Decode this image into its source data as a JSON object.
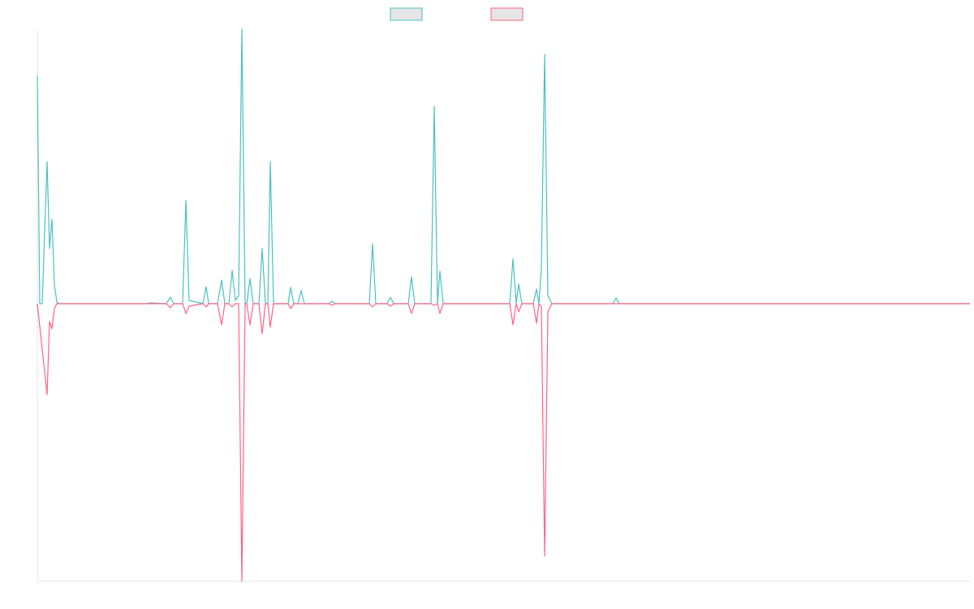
{
  "chart_data": {
    "type": "line",
    "xlim": [
      0,
      1149
    ],
    "ylim": [
      -342,
      338
    ],
    "grid": false,
    "legend": "top",
    "series": [
      {
        "color": "#4bc0c0",
        "x": [
          0,
          3,
          6,
          12,
          15,
          18,
          21,
          24,
          27,
          134,
          139,
          159,
          164,
          168,
          179,
          183,
          187,
          204,
          208,
          211,
          222,
          227,
          231,
          236,
          240,
          244,
          248,
          252,
          256,
          258,
          262,
          266,
          273,
          277,
          281,
          284,
          287,
          291,
          309,
          312,
          316,
          321,
          325,
          329,
          359,
          363,
          367,
          409,
          413,
          417,
          431,
          435,
          439,
          457,
          461,
          465,
          485,
          489,
          493,
          496,
          500,
          582,
          586,
          590,
          593,
          597,
          611,
          615,
          618,
          621,
          625,
          629,
          634,
          709,
          713,
          717,
          1149
        ],
        "values": [
          281,
          0,
          0,
          175,
          68,
          104,
          24,
          2,
          0,
          0,
          1,
          0,
          8,
          0,
          0,
          127,
          4,
          0,
          21,
          0,
          0,
          29,
          0,
          0,
          41,
          4,
          10,
          338,
          0,
          0,
          31,
          0,
          0,
          68,
          0,
          0,
          175,
          0,
          0,
          20,
          0,
          0,
          16,
          0,
          0,
          3,
          0,
          0,
          74,
          0,
          0,
          8,
          0,
          0,
          33,
          0,
          0,
          243,
          0,
          40,
          0,
          0,
          55,
          0,
          24,
          0,
          0,
          18,
          0,
          44,
          307,
          10,
          0,
          0,
          7,
          0,
          0
        ]
      },
      {
        "color": "#ff6384",
        "x": [
          0,
          12,
          15,
          18,
          21,
          24,
          159,
          164,
          168,
          179,
          183,
          187,
          204,
          208,
          211,
          222,
          227,
          231,
          236,
          240,
          244,
          248,
          252,
          256,
          258,
          262,
          266,
          273,
          277,
          281,
          284,
          287,
          291,
          309,
          312,
          316,
          359,
          363,
          367,
          409,
          413,
          417,
          431,
          435,
          439,
          457,
          461,
          465,
          485,
          489,
          493,
          496,
          500,
          582,
          586,
          590,
          593,
          597,
          611,
          615,
          618,
          621,
          625,
          629,
          634,
          1149
        ],
        "values": [
          0,
          -112,
          -22,
          -31,
          -6,
          0,
          0,
          -5,
          0,
          0,
          -12,
          -3,
          0,
          -4,
          0,
          0,
          -26,
          0,
          0,
          -4,
          0,
          0,
          -342,
          0,
          0,
          -26,
          0,
          0,
          -37,
          0,
          0,
          -29,
          0,
          0,
          -6,
          0,
          0,
          -2,
          0,
          0,
          -4,
          0,
          0,
          -3,
          0,
          0,
          -12,
          0,
          0,
          -2,
          0,
          -12,
          0,
          0,
          -26,
          0,
          -10,
          0,
          0,
          -24,
          0,
          -4,
          -311,
          -10,
          0,
          0
        ]
      }
    ]
  }
}
